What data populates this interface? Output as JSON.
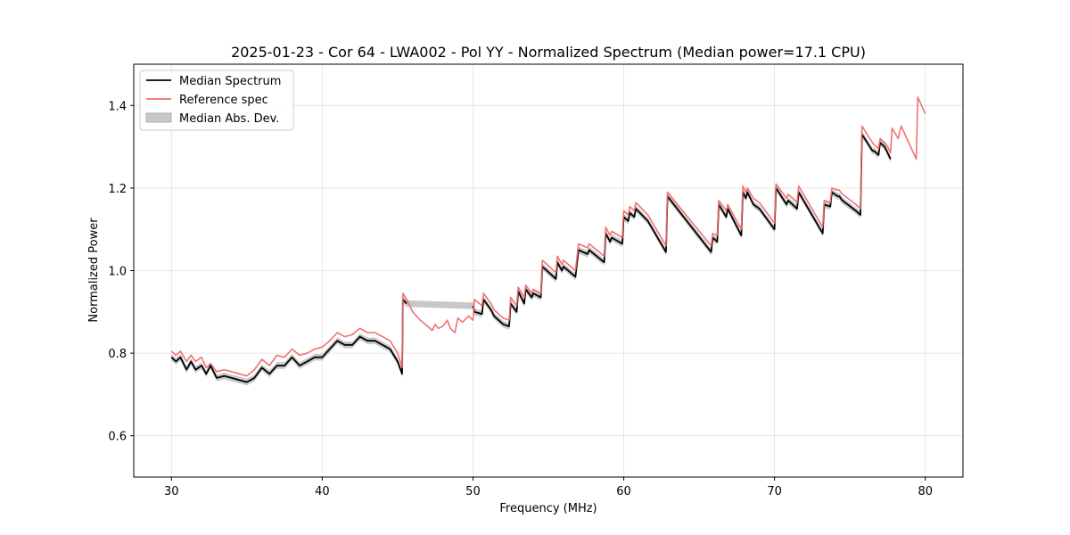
{
  "chart_data": {
    "type": "line",
    "title": "2025-01-23 - Cor 64 - LWA002 - Pol YY - Normalized Spectrum (Median power=17.1 CPU)",
    "xlabel": "Frequency (MHz)",
    "ylabel": "Normalized Power",
    "xlim": [
      27.5,
      82.5
    ],
    "ylim": [
      0.5,
      1.5
    ],
    "xticks": [
      30,
      40,
      50,
      60,
      70,
      80
    ],
    "yticks": [
      0.6,
      0.8,
      1.0,
      1.2,
      1.4
    ],
    "grid": true,
    "legend_position": "top-left",
    "legend": [
      "Median Spectrum",
      "Reference spec",
      "Median Abs. Dev."
    ],
    "colors": {
      "median": "#000000",
      "reference": "#f06a6a",
      "mad": "#a0a0a0"
    },
    "series": [
      {
        "name": "Median Spectrum",
        "x": [
          30.0,
          30.3,
          30.6,
          31.0,
          31.3,
          31.6,
          32.0,
          32.3,
          32.6,
          33.0,
          33.5,
          34.0,
          34.5,
          35.0,
          35.5,
          36.0,
          36.5,
          37.0,
          37.5,
          38.0,
          38.5,
          39.0,
          39.5,
          40.0,
          40.5,
          41.0,
          41.5,
          42.0,
          42.5,
          43.0,
          43.5,
          44.0,
          44.5,
          45.0,
          45.3,
          45.35,
          45.6,
          50.0,
          50.1,
          50.6,
          50.7,
          51.2,
          51.4,
          52.0,
          52.4,
          52.5,
          52.9,
          53.0,
          53.4,
          53.5,
          53.9,
          54.0,
          54.5,
          54.6,
          55.5,
          55.6,
          55.9,
          56.0,
          56.8,
          57.0,
          57.6,
          57.7,
          58.7,
          58.8,
          59.1,
          59.2,
          59.9,
          60.0,
          60.3,
          60.4,
          60.7,
          60.8,
          61.6,
          62.8,
          62.9,
          65.8,
          65.9,
          66.2,
          66.3,
          66.8,
          66.9,
          67.8,
          67.9,
          68.1,
          68.2,
          68.6,
          69.0,
          70.0,
          70.1,
          70.8,
          70.9,
          71.5,
          71.6,
          73.2,
          73.3,
          73.7,
          73.8,
          74.2,
          74.3,
          74.5,
          75.4,
          75.7,
          75.8,
          76.5,
          76.6,
          76.9,
          77.0,
          77.3,
          77.5,
          77.7
        ],
        "y": [
          0.79,
          0.78,
          0.79,
          0.76,
          0.78,
          0.76,
          0.77,
          0.75,
          0.77,
          0.74,
          0.745,
          0.74,
          0.735,
          0.73,
          0.74,
          0.765,
          0.75,
          0.77,
          0.77,
          0.79,
          0.77,
          0.78,
          0.79,
          0.79,
          0.81,
          0.83,
          0.82,
          0.82,
          0.84,
          0.83,
          0.83,
          0.82,
          0.81,
          0.78,
          0.75,
          0.93,
          0.92,
          0.915,
          0.9,
          0.895,
          0.93,
          0.905,
          0.89,
          0.87,
          0.865,
          0.92,
          0.9,
          0.95,
          0.92,
          0.955,
          0.935,
          0.945,
          0.935,
          1.01,
          0.98,
          1.02,
          1.0,
          1.01,
          0.985,
          1.05,
          1.04,
          1.05,
          1.02,
          1.09,
          1.07,
          1.08,
          1.065,
          1.13,
          1.12,
          1.14,
          1.13,
          1.15,
          1.12,
          1.045,
          1.18,
          1.045,
          1.08,
          1.07,
          1.16,
          1.13,
          1.15,
          1.085,
          1.19,
          1.175,
          1.19,
          1.16,
          1.15,
          1.1,
          1.2,
          1.16,
          1.17,
          1.15,
          1.19,
          1.09,
          1.16,
          1.155,
          1.19,
          1.18,
          1.18,
          1.17,
          1.145,
          1.135,
          1.33,
          1.29,
          1.29,
          1.28,
          1.31,
          1.3,
          1.285,
          1.27
        ],
        "mad": 0.008
      },
      {
        "name": "Reference spec",
        "x": [
          30.0,
          30.3,
          30.6,
          31.0,
          31.3,
          31.6,
          32.0,
          32.3,
          32.6,
          33.0,
          33.5,
          34.0,
          34.5,
          35.0,
          35.5,
          36.0,
          36.5,
          37.0,
          37.5,
          38.0,
          38.5,
          39.0,
          39.5,
          40.0,
          40.5,
          41.0,
          41.5,
          42.0,
          42.5,
          43.0,
          43.5,
          44.0,
          44.5,
          45.0,
          45.3,
          45.35,
          45.6,
          46.0,
          46.5,
          47.0,
          47.3,
          47.5,
          47.7,
          48.0,
          48.3,
          48.5,
          48.8,
          49.0,
          49.3,
          49.7,
          50.0,
          50.1,
          50.6,
          50.7,
          51.2,
          51.4,
          52.0,
          52.4,
          52.5,
          52.9,
          53.0,
          53.4,
          53.5,
          53.9,
          54.0,
          54.5,
          54.6,
          55.5,
          55.6,
          55.9,
          56.0,
          56.8,
          57.0,
          57.6,
          57.7,
          58.7,
          58.8,
          59.1,
          59.2,
          59.9,
          60.0,
          60.3,
          60.4,
          60.7,
          60.8,
          61.6,
          62.8,
          62.9,
          65.8,
          65.9,
          66.2,
          66.3,
          66.8,
          66.9,
          67.8,
          67.9,
          68.1,
          68.2,
          68.6,
          69.0,
          70.0,
          70.1,
          70.8,
          70.9,
          71.5,
          71.6,
          73.2,
          73.3,
          73.7,
          73.8,
          74.2,
          74.3,
          74.5,
          75.4,
          75.7,
          75.8,
          76.5,
          76.6,
          76.9,
          77.0,
          77.3,
          77.5,
          77.7,
          77.8,
          78.2,
          78.4,
          79.4,
          79.5,
          80.0
        ],
        "y": [
          0.805,
          0.795,
          0.805,
          0.78,
          0.795,
          0.78,
          0.79,
          0.765,
          0.775,
          0.755,
          0.76,
          0.755,
          0.75,
          0.745,
          0.76,
          0.785,
          0.77,
          0.795,
          0.79,
          0.81,
          0.795,
          0.8,
          0.81,
          0.815,
          0.83,
          0.85,
          0.84,
          0.845,
          0.86,
          0.85,
          0.85,
          0.84,
          0.83,
          0.8,
          0.765,
          0.945,
          0.93,
          0.9,
          0.88,
          0.865,
          0.855,
          0.87,
          0.86,
          0.865,
          0.88,
          0.86,
          0.85,
          0.885,
          0.875,
          0.89,
          0.88,
          0.93,
          0.915,
          0.945,
          0.92,
          0.905,
          0.885,
          0.88,
          0.935,
          0.915,
          0.96,
          0.935,
          0.965,
          0.945,
          0.955,
          0.945,
          1.025,
          0.995,
          1.035,
          1.015,
          1.025,
          1.0,
          1.065,
          1.055,
          1.065,
          1.035,
          1.105,
          1.085,
          1.095,
          1.08,
          1.145,
          1.135,
          1.155,
          1.145,
          1.165,
          1.135,
          1.06,
          1.19,
          1.06,
          1.09,
          1.085,
          1.17,
          1.145,
          1.16,
          1.1,
          1.205,
          1.19,
          1.2,
          1.175,
          1.165,
          1.115,
          1.21,
          1.175,
          1.185,
          1.165,
          1.205,
          1.105,
          1.17,
          1.165,
          1.2,
          1.195,
          1.195,
          1.185,
          1.16,
          1.15,
          1.35,
          1.31,
          1.305,
          1.295,
          1.32,
          1.31,
          1.3,
          1.285,
          1.345,
          1.32,
          1.35,
          1.27,
          1.42,
          1.38
        ]
      }
    ]
  }
}
